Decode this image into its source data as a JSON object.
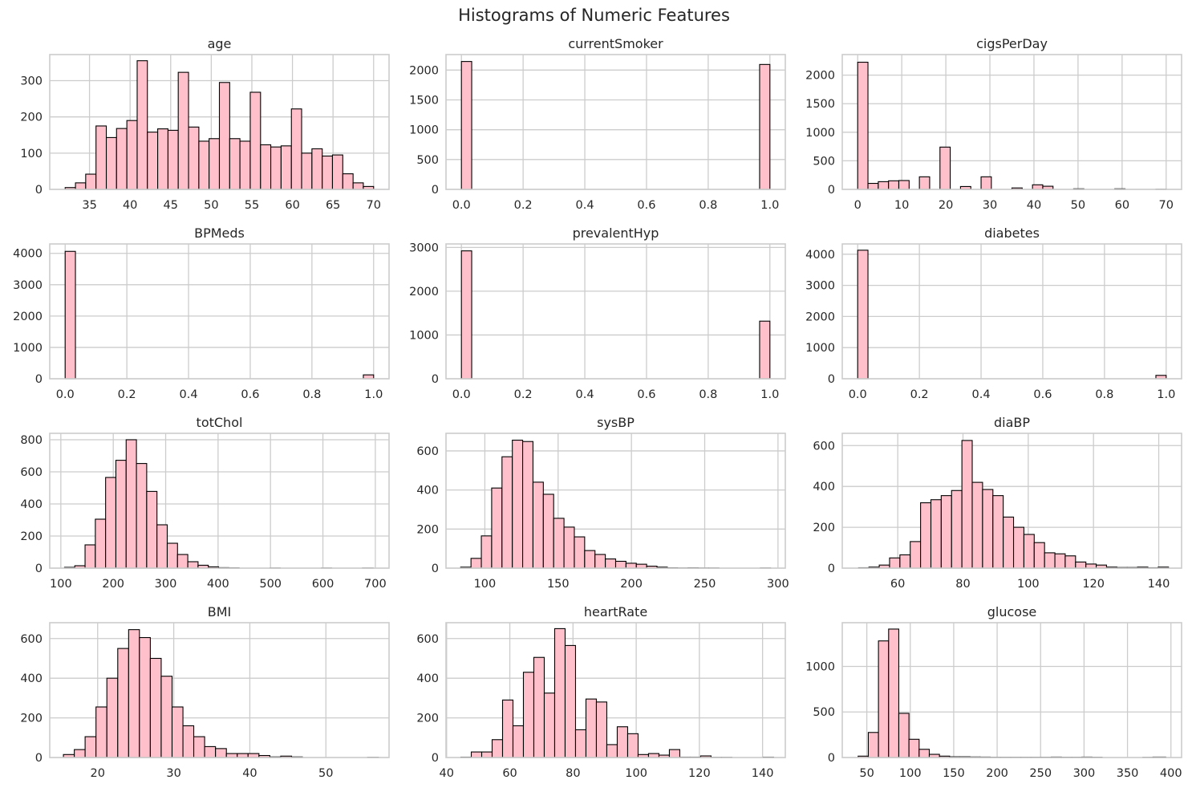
{
  "figure": {
    "title": "Histograms of Numeric Features",
    "bar_fill": "#ffc0cb",
    "bar_edge": "#000000",
    "grid_color": "#cccccc",
    "spine_color": "#cccccc",
    "text_color": "#262626"
  },
  "chart_data": [
    {
      "type": "bar",
      "title": "age",
      "xlabel": "",
      "ylabel": "",
      "xlim": [
        30.1,
        71.9
      ],
      "ylim": [
        0,
        372
      ],
      "xticks": [
        35,
        40,
        45,
        50,
        55,
        60,
        65,
        70
      ],
      "yticks": [
        0,
        100,
        200,
        300
      ],
      "bin_edges": [
        32,
        33.27,
        34.53,
        35.8,
        37.07,
        38.33,
        39.6,
        40.87,
        42.13,
        43.4,
        44.67,
        45.93,
        47.2,
        48.47,
        49.73,
        51,
        52.27,
        53.53,
        54.8,
        56.07,
        57.33,
        58.6,
        59.87,
        61.13,
        62.4,
        63.67,
        64.93,
        66.2,
        67.47,
        68.73,
        70
      ],
      "values": [
        5,
        18,
        42,
        175,
        143,
        168,
        190,
        355,
        158,
        167,
        163,
        323,
        172,
        133,
        140,
        295,
        140,
        133,
        268,
        123,
        117,
        120,
        222,
        100,
        112,
        92,
        95,
        43,
        18,
        8
      ]
    },
    {
      "type": "bar",
      "title": "currentSmoker",
      "xlabel": "",
      "ylabel": "",
      "xlim": [
        -0.05,
        1.05
      ],
      "ylim": [
        0,
        2260
      ],
      "xticks": [
        0.0,
        0.2,
        0.4,
        0.6,
        0.8,
        1.0
      ],
      "xtick_labels": [
        "0.0",
        "0.2",
        "0.4",
        "0.6",
        "0.8",
        "1.0"
      ],
      "yticks": [
        0,
        500,
        1000,
        1500,
        2000
      ],
      "bin_edges": [
        0,
        0.0333,
        0.0667,
        0.1,
        0.1333,
        0.1667,
        0.2,
        0.2333,
        0.2667,
        0.3,
        0.3333,
        0.3667,
        0.4,
        0.4333,
        0.4667,
        0.5,
        0.5333,
        0.5667,
        0.6,
        0.6333,
        0.6667,
        0.7,
        0.7333,
        0.7667,
        0.8,
        0.8333,
        0.8667,
        0.9,
        0.9333,
        0.9667,
        1.0
      ],
      "values": [
        2144,
        0,
        0,
        0,
        0,
        0,
        0,
        0,
        0,
        0,
        0,
        0,
        0,
        0,
        0,
        0,
        0,
        0,
        0,
        0,
        0,
        0,
        0,
        0,
        0,
        0,
        0,
        0,
        0,
        2094
      ]
    },
    {
      "type": "bar",
      "title": "cigsPerDay",
      "xlabel": "",
      "ylabel": "",
      "xlim": [
        -3.5,
        73.5
      ],
      "ylim": [
        0,
        2360
      ],
      "xticks": [
        0,
        10,
        20,
        30,
        40,
        50,
        60,
        70
      ],
      "yticks": [
        0,
        500,
        1000,
        1500,
        2000
      ],
      "bin_edges": [
        0,
        2.33,
        4.67,
        7,
        9.33,
        11.67,
        14,
        16.33,
        18.67,
        21,
        23.33,
        25.67,
        28,
        30.33,
        32.67,
        35,
        37.33,
        39.67,
        42,
        44.33,
        46.67,
        49,
        51.33,
        53.67,
        56,
        58.33,
        60.67,
        63,
        65.33,
        67.67,
        70
      ],
      "values": [
        2226,
        105,
        135,
        150,
        155,
        0,
        220,
        0,
        740,
        0,
        50,
        0,
        220,
        0,
        0,
        25,
        0,
        80,
        55,
        0,
        0,
        10,
        0,
        0,
        0,
        10,
        0,
        0,
        0,
        2
      ]
    },
    {
      "type": "bar",
      "title": "BPMeds",
      "xlabel": "",
      "ylabel": "",
      "xlim": [
        -0.05,
        1.05
      ],
      "ylim": [
        0,
        4300
      ],
      "xticks": [
        0.0,
        0.2,
        0.4,
        0.6,
        0.8,
        1.0
      ],
      "xtick_labels": [
        "0.0",
        "0.2",
        "0.4",
        "0.6",
        "0.8",
        "1.0"
      ],
      "yticks": [
        0,
        1000,
        2000,
        3000,
        4000
      ],
      "bin_edges": [
        0,
        0.0333,
        0.0667,
        0.1,
        0.1333,
        0.1667,
        0.2,
        0.2333,
        0.2667,
        0.3,
        0.3333,
        0.3667,
        0.4,
        0.4333,
        0.4667,
        0.5,
        0.5333,
        0.5667,
        0.6,
        0.6333,
        0.6667,
        0.7,
        0.7333,
        0.7667,
        0.8,
        0.8333,
        0.8667,
        0.9,
        0.9333,
        0.9667,
        1.0
      ],
      "values": [
        4063,
        0,
        0,
        0,
        0,
        0,
        0,
        0,
        0,
        0,
        0,
        0,
        0,
        0,
        0,
        0,
        0,
        0,
        0,
        0,
        0,
        0,
        0,
        0,
        0,
        0,
        0,
        0,
        0,
        124
      ]
    },
    {
      "type": "bar",
      "title": "prevalentHyp",
      "xlabel": "",
      "ylabel": "",
      "xlim": [
        -0.05,
        1.05
      ],
      "ylim": [
        0,
        3080
      ],
      "xticks": [
        0.0,
        0.2,
        0.4,
        0.6,
        0.8,
        1.0
      ],
      "xtick_labels": [
        "0.0",
        "0.2",
        "0.4",
        "0.6",
        "0.8",
        "1.0"
      ],
      "yticks": [
        0,
        1000,
        2000,
        3000
      ],
      "bin_edges": [
        0,
        0.0333,
        0.0667,
        0.1,
        0.1333,
        0.1667,
        0.2,
        0.2333,
        0.2667,
        0.3,
        0.3333,
        0.3667,
        0.4,
        0.4333,
        0.4667,
        0.5,
        0.5333,
        0.5667,
        0.6,
        0.6333,
        0.6667,
        0.7,
        0.7333,
        0.7667,
        0.8,
        0.8333,
        0.8667,
        0.9,
        0.9333,
        0.9667,
        1.0
      ],
      "values": [
        2922,
        0,
        0,
        0,
        0,
        0,
        0,
        0,
        0,
        0,
        0,
        0,
        0,
        0,
        0,
        0,
        0,
        0,
        0,
        0,
        0,
        0,
        0,
        0,
        0,
        0,
        0,
        0,
        0,
        1316
      ]
    },
    {
      "type": "bar",
      "title": "diabetes",
      "xlabel": "",
      "ylabel": "",
      "xlim": [
        -0.05,
        1.05
      ],
      "ylim": [
        0,
        4330
      ],
      "xticks": [
        0.0,
        0.2,
        0.4,
        0.6,
        0.8,
        1.0
      ],
      "xtick_labels": [
        "0.0",
        "0.2",
        "0.4",
        "0.6",
        "0.8",
        "1.0"
      ],
      "yticks": [
        0,
        1000,
        2000,
        3000,
        4000
      ],
      "bin_edges": [
        0,
        0.0333,
        0.0667,
        0.1,
        0.1333,
        0.1667,
        0.2,
        0.2333,
        0.2667,
        0.3,
        0.3333,
        0.3667,
        0.4,
        0.4333,
        0.4667,
        0.5,
        0.5333,
        0.5667,
        0.6,
        0.6333,
        0.6667,
        0.7,
        0.7333,
        0.7667,
        0.8,
        0.8333,
        0.8667,
        0.9,
        0.9333,
        0.9667,
        1.0
      ],
      "values": [
        4129,
        0,
        0,
        0,
        0,
        0,
        0,
        0,
        0,
        0,
        0,
        0,
        0,
        0,
        0,
        0,
        0,
        0,
        0,
        0,
        0,
        0,
        0,
        0,
        0,
        0,
        0,
        0,
        0,
        109
      ]
    },
    {
      "type": "bar",
      "title": "totChol",
      "xlabel": "",
      "ylabel": "",
      "xlim": [
        78.8,
        726.2
      ],
      "ylim": [
        0,
        840
      ],
      "xticks": [
        100,
        200,
        300,
        400,
        500,
        600,
        700
      ],
      "yticks": [
        0,
        200,
        400,
        600,
        800
      ],
      "bin_edges": [
        107,
        126.6,
        146.2,
        165.8,
        185.4,
        205,
        224.6,
        244.2,
        263.8,
        283.4,
        303,
        322.6,
        342.2,
        361.8,
        381.4,
        401,
        420.6,
        440.2,
        459.8,
        479.4,
        499,
        518.6,
        538.2,
        557.8,
        577.4,
        597,
        616.6,
        636.2,
        655.8,
        675.4,
        696
      ],
      "values": [
        5,
        15,
        145,
        305,
        565,
        672,
        800,
        652,
        478,
        270,
        155,
        85,
        40,
        18,
        8,
        3,
        2,
        0,
        0,
        0,
        1,
        0,
        0,
        0,
        0,
        1,
        0,
        0,
        0,
        1
      ]
    },
    {
      "type": "bar",
      "title": "sysBP",
      "xlabel": "",
      "ylabel": "",
      "xlim": [
        73.5,
        305
      ],
      "ylim": [
        0,
        690
      ],
      "xticks": [
        100,
        150,
        200,
        250,
        300
      ],
      "yticks": [
        0,
        200,
        400,
        600
      ],
      "bin_edges": [
        83.5,
        90.55,
        97.6,
        104.65,
        111.7,
        118.75,
        125.8,
        132.85,
        139.9,
        146.95,
        154,
        161.05,
        168.1,
        175.15,
        182.2,
        189.25,
        196.3,
        203.35,
        210.4,
        217.45,
        224.5,
        231.55,
        238.6,
        245.65,
        252.7,
        259.75,
        266.8,
        273.85,
        280.9,
        287.95,
        295
      ],
      "values": [
        5,
        50,
        165,
        410,
        570,
        655,
        648,
        440,
        378,
        255,
        210,
        160,
        90,
        70,
        47,
        35,
        25,
        20,
        10,
        5,
        2,
        1,
        2,
        1,
        1,
        0,
        0,
        0,
        0,
        1
      ]
    },
    {
      "type": "bar",
      "title": "diaBP",
      "xlabel": "",
      "ylabel": "",
      "xlim": [
        43,
        147
      ],
      "ylim": [
        0,
        660
      ],
      "xticks": [
        60,
        80,
        100,
        120,
        140
      ],
      "yticks": [
        0,
        200,
        400,
        600
      ],
      "bin_edges": [
        48,
        51.17,
        54.33,
        57.5,
        60.67,
        63.83,
        67,
        70.17,
        73.33,
        76.5,
        79.67,
        82.83,
        86,
        89.17,
        92.33,
        95.5,
        98.67,
        101.83,
        105,
        108.17,
        111.33,
        114.5,
        117.67,
        120.83,
        124,
        127.17,
        130.33,
        133.5,
        136.67,
        139.83,
        143
      ],
      "values": [
        2,
        5,
        15,
        50,
        65,
        130,
        320,
        335,
        355,
        380,
        625,
        420,
        385,
        355,
        250,
        200,
        165,
        125,
        75,
        70,
        60,
        30,
        20,
        15,
        5,
        3,
        3,
        5,
        2,
        5
      ]
    },
    {
      "type": "bar",
      "title": "BMI",
      "xlabel": "",
      "ylabel": "",
      "xlim": [
        13.7,
        58.3
      ],
      "ylim": [
        0,
        680
      ],
      "xticks": [
        20,
        30,
        40,
        50
      ],
      "yticks": [
        0,
        200,
        400,
        600
      ],
      "bin_edges": [
        15.5,
        16.93,
        18.35,
        19.78,
        21.21,
        22.64,
        24.07,
        25.49,
        26.92,
        28.35,
        29.78,
        31.21,
        32.63,
        34.06,
        35.49,
        36.92,
        38.35,
        39.77,
        41.2,
        42.63,
        44.06,
        45.49,
        46.91,
        48.34,
        49.77,
        51.2,
        52.63,
        54.05,
        55.48,
        56.91,
        58.34
      ],
      "values": [
        15,
        40,
        105,
        255,
        400,
        550,
        645,
        605,
        500,
        410,
        255,
        160,
        105,
        55,
        45,
        20,
        20,
        20,
        10,
        3,
        7,
        3,
        0,
        0,
        0,
        0,
        0,
        0,
        1,
        0
      ]
    },
    {
      "type": "bar",
      "title": "heartRate",
      "xlabel": "",
      "ylabel": "",
      "xlim": [
        39.8,
        147.2
      ],
      "ylim": [
        0,
        680
      ],
      "xticks": [
        40,
        60,
        80,
        100,
        120,
        140
      ],
      "yticks": [
        0,
        200,
        400,
        600
      ],
      "bin_edges": [
        44.5,
        47.8,
        51.1,
        54.4,
        57.7,
        61,
        64.3,
        67.6,
        70.9,
        74.2,
        77.5,
        80.8,
        84.1,
        87.4,
        90.7,
        94,
        97.3,
        100.6,
        103.9,
        107.2,
        110.5,
        113.8,
        117.1,
        120.4,
        123.7,
        127,
        130.3,
        133.6,
        136.9,
        140.2,
        143.5
      ],
      "values": [
        2,
        28,
        28,
        90,
        290,
        160,
        430,
        505,
        325,
        650,
        565,
        140,
        295,
        280,
        65,
        155,
        120,
        15,
        20,
        12,
        40,
        2,
        2,
        8,
        1,
        1,
        0,
        0,
        0,
        2
      ]
    },
    {
      "type": "bar",
      "title": "glucose",
      "xlabel": "",
      "ylabel": "",
      "xlim": [
        21.75,
        412.25
      ],
      "ylim": [
        0,
        1480
      ],
      "xticks": [
        50,
        100,
        150,
        200,
        250,
        300,
        350,
        400
      ],
      "yticks": [
        0,
        500,
        1000
      ],
      "bin_edges": [
        40,
        51.7,
        63.4,
        75.1,
        86.8,
        98.5,
        110.2,
        121.9,
        133.6,
        145.3,
        157,
        168.7,
        180.4,
        192.1,
        203.8,
        215.5,
        227.2,
        238.9,
        250.6,
        262.3,
        274,
        285.7,
        297.4,
        309.1,
        320.8,
        332.5,
        344.2,
        355.9,
        367.6,
        379.3,
        394
      ],
      "values": [
        15,
        275,
        1280,
        1410,
        485,
        200,
        90,
        35,
        15,
        8,
        8,
        6,
        5,
        3,
        3,
        3,
        3,
        3,
        3,
        5,
        3,
        3,
        5,
        3,
        0,
        0,
        0,
        0,
        2,
        5
      ]
    }
  ]
}
